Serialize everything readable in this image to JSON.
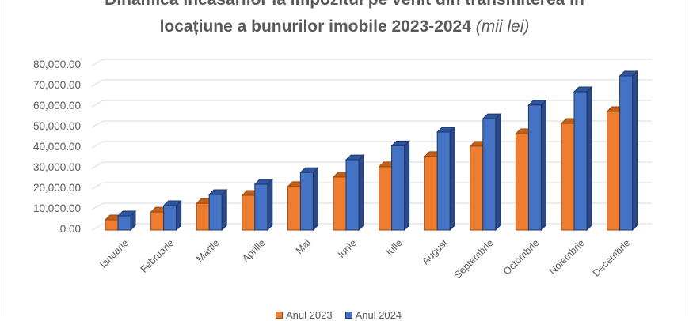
{
  "chart_data": {
    "type": "bar",
    "style": "3d-clustered-column",
    "title": "Dinamica încasărilor la impozitul pe venit din transmiterea în locațiune a bunurilor imobile 2023-2024",
    "title_line1": "Dinamica încasărilor la impozitul pe venit din transmiterea în",
    "title_line2": "locațiune a bunurilor imobile 2023-2024",
    "title_unit": "(mii lei)",
    "xlabel": "",
    "ylabel": "",
    "ylim": [
      0,
      80000
    ],
    "yticks": [
      "0.00",
      "10,000.00",
      "20,000.00",
      "30,000.00",
      "40,000.00",
      "50,000.00",
      "60,000.00",
      "70,000.00",
      "80,000.00"
    ],
    "grid": true,
    "legend_position": "bottom",
    "categories": [
      "Ianuarie",
      "Februarie",
      "Martie",
      "Aprilie",
      "Mai",
      "Iunie",
      "Iulie",
      "August",
      "Septembrie",
      "Octombrie",
      "Noiembrie",
      "Decembrie"
    ],
    "series": [
      {
        "name": "Anul 2023",
        "color": "#ED7D31",
        "values": [
          5000,
          8800,
          13000,
          16900,
          21200,
          25800,
          30800,
          35800,
          40800,
          46900,
          51900,
          57700
        ]
      },
      {
        "name": "Anul 2024",
        "color": "#4472C4",
        "values": [
          6900,
          11900,
          17300,
          22300,
          28000,
          34200,
          41000,
          47700,
          54200,
          60800,
          67300,
          75000
        ]
      }
    ]
  }
}
